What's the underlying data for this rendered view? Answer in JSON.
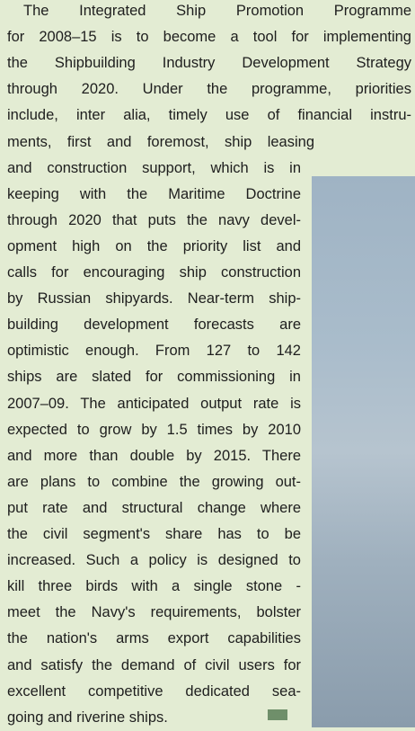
{
  "lines": [
    "The Integrated Ship Promotion Programme",
    "for 2008–15 is to become a tool for implementing",
    "the Shipbuilding Industry Development Strategy",
    "through 2020. Under the programme, priorities",
    "include, inter alia, timely use of financial instru-",
    "ments, first and foremost, ship leasing",
    "and construction support, which is in",
    "keeping with the Maritime Doctrine",
    "through 2020 that puts the navy devel-",
    "opment high on the priority list and",
    "calls for encouraging ship construction",
    "by Russian shipyards. Near-term ship-",
    "building development forecasts are",
    "optimistic enough. From 127 to 142",
    "ships are slated for commissioning in",
    "2007–09. The anticipated output rate is",
    "expected to grow by 1.5 times by 2010",
    "and more than double by 2015. There",
    "are plans to combine the growing out-",
    "put rate and structural change where",
    "the civil segment's share has to be",
    "increased. Such a policy is designed to",
    "kill three birds with a single stone -",
    "meet the Navy's requirements, bolster",
    "the nation's arms export capabilities",
    "and satisfy the demand of civil users for",
    "excellent competitive dedicated sea-",
    "going and riverine ships."
  ]
}
